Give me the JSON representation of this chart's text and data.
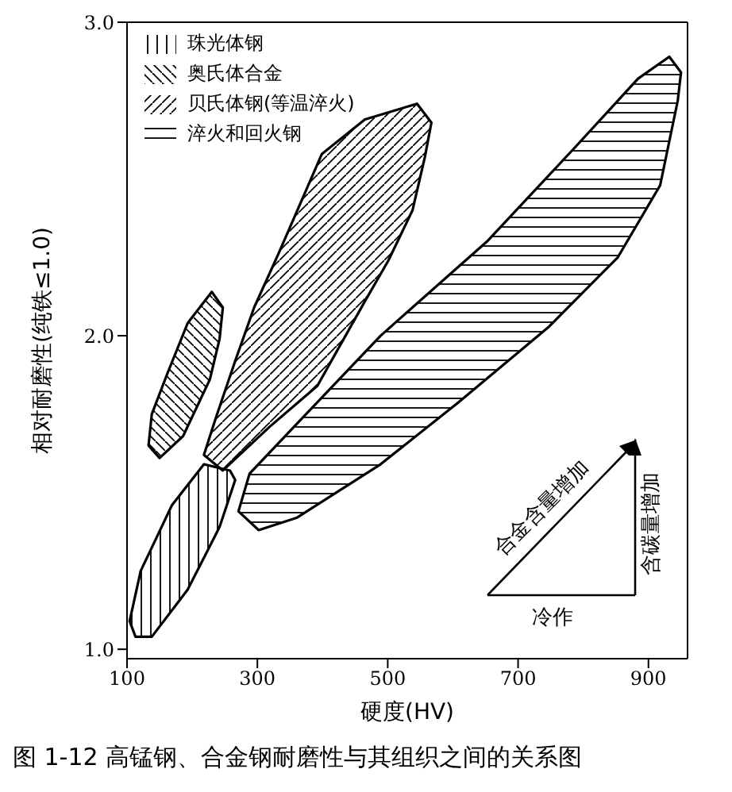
{
  "chart_data": {
    "type": "area",
    "title": "图 1-12  高锰钢、合金钢耐磨性与其组织之间的关系图",
    "xlabel": "硬度(HV)",
    "ylabel": "相对耐磨性(纯铁≤1.0)",
    "xlim": [
      100,
      960
    ],
    "xticks": [
      100,
      300,
      500,
      700,
      900
    ],
    "ylim": [
      0.97,
      3.0
    ],
    "yticks": [
      {
        "value": 1,
        "label": "1.0"
      },
      {
        "value": 2,
        "label": "2.0"
      },
      {
        "value": 3,
        "label": "3.0"
      }
    ],
    "grid": false,
    "legend": "top left",
    "marker": "none",
    "line_style": "solid",
    "series": [
      {
        "name": "珠光体钢",
        "color": "#000000",
        "x": [
          258,
          266,
          242,
          193,
          138,
          113,
          104,
          121,
          169,
          218,
          258
        ],
        "values": [
          1.57,
          1.54,
          1.39,
          1.19,
          1.04,
          1.04,
          1.09,
          1.25,
          1.46,
          1.59,
          1.57
        ]
      },
      {
        "name": "奥氏体合金",
        "color": "#000000",
        "x": [
          230,
          247,
          242,
          227,
          186,
          150,
          133,
          138,
          162,
          193,
          230
        ],
        "values": [
          2.14,
          2.09,
          1.99,
          1.86,
          1.68,
          1.61,
          1.65,
          1.75,
          1.88,
          2.04,
          2.14
        ]
      },
      {
        "name": "贝氏体钢(等温淬火)",
        "color": "#000000",
        "x": [
          545,
          567,
          557,
          538,
          501,
          465,
          392,
          319,
          247,
          218,
          235,
          266,
          295,
          332,
          399,
          465,
          545
        ],
        "values": [
          2.74,
          2.68,
          2.57,
          2.4,
          2.24,
          2.11,
          1.84,
          1.71,
          1.57,
          1.62,
          1.73,
          1.92,
          2.09,
          2.26,
          2.58,
          2.69,
          2.74
        ]
      },
      {
        "name": "淬火和回火钢",
        "color": "#000000",
        "x": [
          932,
          950,
          945,
          918,
          853,
          748,
          610,
          489,
          361,
          302,
          271,
          288,
          361,
          489,
          652,
          787,
          884,
          932
        ],
        "values": [
          2.89,
          2.84,
          2.75,
          2.48,
          2.25,
          2.03,
          1.79,
          1.59,
          1.42,
          1.38,
          1.44,
          1.56,
          1.72,
          2.0,
          2.3,
          2.6,
          2.82,
          2.89
        ]
      }
    ],
    "annotations": [
      "合金含量增加",
      "含碳量增加",
      "冷作"
    ]
  }
}
